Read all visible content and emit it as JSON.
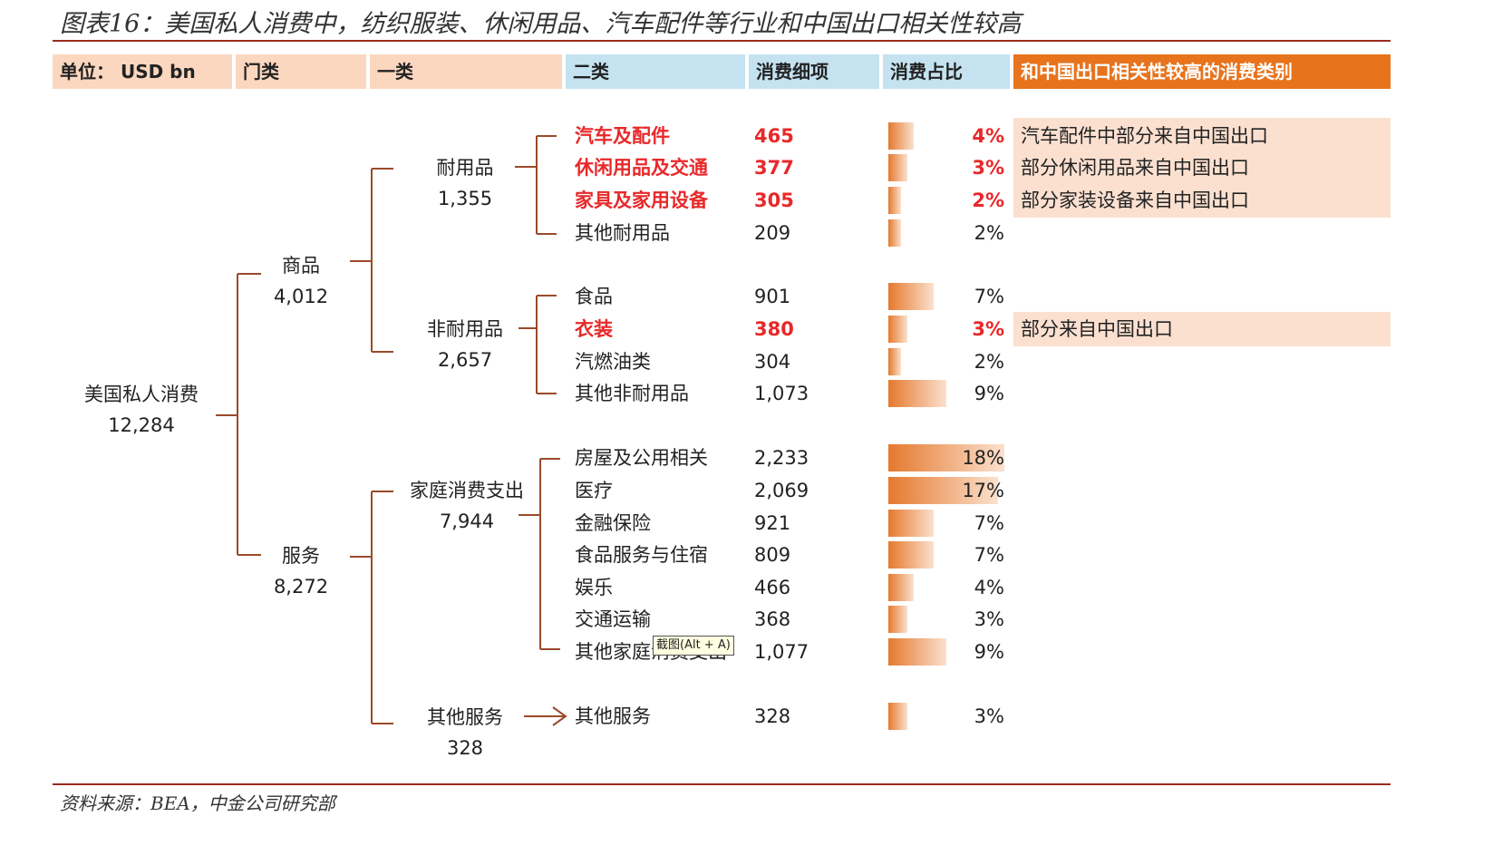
{
  "title": "图表16：美国私人消费中，纺织服装、休闲用品、汽车配件等行业和中国出口相关性较高",
  "headers": {
    "unit": "单位： USD bn",
    "category_door": "门类",
    "category_1": "一类",
    "category_2": "二类",
    "detail": "消费细项",
    "share": "消费占比",
    "china_related": "和中国出口相关性较高的消费类别"
  },
  "tree": {
    "root": {
      "label": "美国私人消费",
      "value": "12,284"
    },
    "goods": {
      "label": "商品",
      "value": "4,012"
    },
    "services": {
      "label": "服务",
      "value": "8,272"
    },
    "durable": {
      "label": "耐用品",
      "value": "1,355"
    },
    "nondurable": {
      "label": "非耐用品",
      "value": "2,657"
    },
    "household": {
      "label": "家庭消费支出",
      "value": "7,944"
    },
    "other_services": {
      "label": "其他服务",
      "value": "328"
    }
  },
  "rows": [
    {
      "name": "汽车及配件",
      "value": "465",
      "pct": "4%",
      "share": 0.04,
      "highlight": true,
      "note": "汽车配件中部分来自中国出口"
    },
    {
      "name": "休闲用品及交通",
      "value": "377",
      "pct": "3%",
      "share": 0.03,
      "highlight": true,
      "note": "部分休闲用品来自中国出口"
    },
    {
      "name": "家具及家用设备",
      "value": "305",
      "pct": "2%",
      "share": 0.02,
      "highlight": true,
      "note": "部分家装设备来自中国出口"
    },
    {
      "name": "其他耐用品",
      "value": "209",
      "pct": "2%",
      "share": 0.02,
      "highlight": false,
      "note": ""
    },
    {
      "name": "食品",
      "value": "901",
      "pct": "7%",
      "share": 0.07,
      "highlight": false,
      "note": ""
    },
    {
      "name": "衣装",
      "value": "380",
      "pct": "3%",
      "share": 0.03,
      "highlight": true,
      "note": "部分来自中国出口"
    },
    {
      "name": "汽燃油类",
      "value": "304",
      "pct": "2%",
      "share": 0.02,
      "highlight": false,
      "note": ""
    },
    {
      "name": "其他非耐用品",
      "value": "1,073",
      "pct": "9%",
      "share": 0.09,
      "highlight": false,
      "note": ""
    },
    {
      "name": "房屋及公用相关",
      "value": "2,233",
      "pct": "18%",
      "share": 0.18,
      "highlight": false,
      "note": ""
    },
    {
      "name": "医疗",
      "value": "2,069",
      "pct": "17%",
      "share": 0.17,
      "highlight": false,
      "note": ""
    },
    {
      "name": "金融保险",
      "value": "921",
      "pct": "7%",
      "share": 0.07,
      "highlight": false,
      "note": ""
    },
    {
      "name": "食品服务与住宿",
      "value": "809",
      "pct": "7%",
      "share": 0.07,
      "highlight": false,
      "note": ""
    },
    {
      "name": "娱乐",
      "value": "466",
      "pct": "4%",
      "share": 0.04,
      "highlight": false,
      "note": ""
    },
    {
      "name": "交通运输",
      "value": "368",
      "pct": "3%",
      "share": 0.03,
      "highlight": false,
      "note": ""
    },
    {
      "name": "其他家庭消费支出",
      "value": "1,077",
      "pct": "9%",
      "share": 0.09,
      "highlight": false,
      "note": ""
    },
    {
      "name": "其他服务",
      "value": "328",
      "pct": "3%",
      "share": 0.03,
      "highlight": false,
      "note": ""
    }
  ],
  "tooltip": "截图(Alt + A)",
  "footer": "资料来源：BEA，中金公司研究部",
  "colors": {
    "accent": "#e8731d",
    "red": "#e8282a",
    "rule": "#9b2b1e",
    "bracket": "#9b4a2a"
  }
}
